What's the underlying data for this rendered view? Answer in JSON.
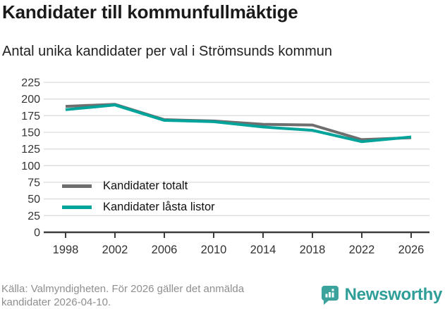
{
  "header": {
    "title": "Kandidater till kommunfullmäktige",
    "subtitle": "Antal unika kandidater per val i Strömsunds kommun"
  },
  "chart_data": {
    "type": "line",
    "x": [
      "1998",
      "2002",
      "2006",
      "2010",
      "2014",
      "2018",
      "2022",
      "2026"
    ],
    "series": [
      {
        "name": "Kandidater totalt",
        "color": "#6e6e6e",
        "values": [
          189,
          192,
          169,
          167,
          162,
          161,
          139,
          142
        ]
      },
      {
        "name": "Kandidater låsta listor",
        "color": "#00a49b",
        "values": [
          184,
          191,
          168,
          166,
          158,
          153,
          136,
          143
        ]
      }
    ],
    "title": "Kandidater till kommunfullmäktige",
    "subtitle": "Antal unika kandidater per val i Strömsunds kommun",
    "xlabel": "",
    "ylabel": "",
    "ylim": [
      0,
      225
    ],
    "ytick_step": 25,
    "grid": true,
    "legend_position": "inside-left",
    "colors": {
      "gridline": "#dcdcdc",
      "axis": "#3c3c3c",
      "tick_label": "#333333"
    }
  },
  "footer": {
    "line1": "Källa: Valmyndigheten. För 2026 gäller det anmälda",
    "line2": "kandidater 2026-04-10.",
    "brand": "Newsworthy",
    "brand_color": "#2f9e98",
    "logo_color": "#3ba39c"
  }
}
